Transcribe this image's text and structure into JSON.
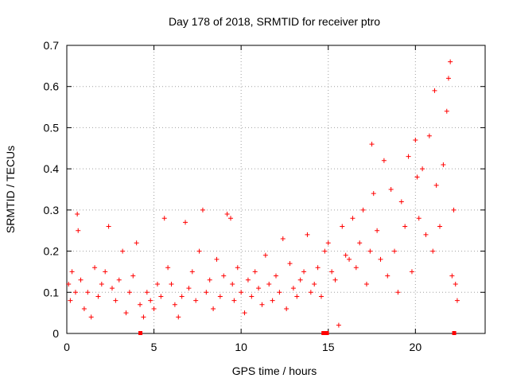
{
  "chart_data": {
    "type": "scatter",
    "title": "Day 178 of 2018, SRMTID for receiver ptro",
    "xlabel": "GPS time / hours",
    "ylabel": "SRMTID / TECUs",
    "xlim": [
      0,
      24
    ],
    "ylim": [
      0,
      0.7
    ],
    "xticks": [
      0,
      5,
      10,
      15,
      20
    ],
    "yticks": [
      0,
      0.1,
      0.2,
      0.3,
      0.4,
      0.5,
      0.6,
      0.7
    ],
    "xtick_labels": [
      "0",
      "5",
      "10",
      "15",
      "20"
    ],
    "ytick_labels": [
      "0",
      "0.1",
      "0.2",
      "0.3",
      "0.4",
      "0.5",
      "0.6",
      "0.7"
    ],
    "grid": true,
    "marker": "+",
    "color": "#ff0000",
    "series": [
      {
        "name": "SRMTID",
        "x": [
          0.1,
          0.2,
          0.3,
          0.5,
          0.6,
          0.65,
          0.8,
          1.0,
          1.2,
          1.4,
          1.6,
          1.8,
          2.0,
          2.2,
          2.4,
          2.6,
          2.8,
          3.0,
          3.2,
          3.4,
          3.6,
          3.8,
          4.0,
          4.2,
          4.4,
          4.6,
          4.8,
          5.0,
          5.2,
          5.4,
          5.6,
          5.8,
          6.0,
          6.2,
          6.4,
          6.6,
          6.8,
          7.0,
          7.2,
          7.4,
          7.6,
          7.8,
          8.0,
          8.2,
          8.4,
          8.6,
          8.8,
          9.0,
          9.2,
          9.4,
          9.5,
          9.6,
          9.8,
          10.0,
          10.2,
          10.4,
          10.6,
          10.8,
          11.0,
          11.2,
          11.4,
          11.6,
          11.8,
          12.0,
          12.2,
          12.4,
          12.6,
          12.8,
          13.0,
          13.2,
          13.4,
          13.6,
          13.8,
          14.0,
          14.2,
          14.4,
          14.6,
          14.8,
          15.0,
          15.2,
          15.4,
          15.6,
          15.8,
          16.0,
          16.2,
          16.4,
          16.6,
          16.8,
          17.0,
          17.2,
          17.4,
          17.5,
          17.6,
          17.8,
          18.0,
          18.2,
          18.4,
          18.6,
          18.8,
          19.0,
          19.2,
          19.4,
          19.6,
          19.8,
          20.0,
          20.1,
          20.2,
          20.4,
          20.6,
          20.8,
          21.0,
          21.1,
          21.2,
          21.4,
          21.6,
          21.8,
          21.9,
          22.0,
          22.1,
          22.2,
          22.3,
          22.4
        ],
        "y": [
          0.12,
          0.08,
          0.15,
          0.1,
          0.29,
          0.25,
          0.13,
          0.06,
          0.1,
          0.04,
          0.16,
          0.09,
          0.12,
          0.15,
          0.26,
          0.11,
          0.08,
          0.13,
          0.2,
          0.05,
          0.1,
          0.14,
          0.22,
          0.07,
          0.04,
          0.1,
          0.08,
          0.06,
          0.12,
          0.09,
          0.28,
          0.16,
          0.12,
          0.07,
          0.04,
          0.09,
          0.27,
          0.11,
          0.15,
          0.08,
          0.2,
          0.3,
          0.1,
          0.13,
          0.06,
          0.18,
          0.09,
          0.14,
          0.29,
          0.28,
          0.12,
          0.08,
          0.16,
          0.1,
          0.05,
          0.13,
          0.09,
          0.15,
          0.11,
          0.07,
          0.19,
          0.12,
          0.08,
          0.14,
          0.1,
          0.23,
          0.06,
          0.17,
          0.11,
          0.09,
          0.13,
          0.15,
          0.24,
          0.1,
          0.12,
          0.16,
          0.09,
          0.2,
          0.22,
          0.15,
          0.13,
          0.02,
          0.26,
          0.19,
          0.18,
          0.28,
          0.16,
          0.22,
          0.3,
          0.12,
          0.2,
          0.46,
          0.34,
          0.25,
          0.18,
          0.42,
          0.14,
          0.35,
          0.2,
          0.1,
          0.32,
          0.26,
          0.43,
          0.15,
          0.47,
          0.38,
          0.28,
          0.4,
          0.24,
          0.48,
          0.2,
          0.59,
          0.36,
          0.26,
          0.41,
          0.54,
          0.62,
          0.66,
          0.14,
          0.3,
          0.12,
          0.08
        ]
      }
    ],
    "baseline_markers_x": [
      4.2,
      14.7,
      14.9,
      22.2
    ]
  }
}
